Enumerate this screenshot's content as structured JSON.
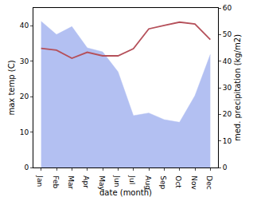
{
  "chart_data": {
    "type": "line",
    "x_label": "date (month)",
    "y_label": "max temp (C)",
    "y2_label": "med. precipitation (kg/m2)",
    "categories": [
      "Jan",
      "Feb",
      "Mar",
      "Apr",
      "May",
      "Jun",
      "Jul",
      "Aug",
      "Sep",
      "Oct",
      "Nov",
      "Dec"
    ],
    "series": [
      {
        "name": "med. precipitation",
        "type": "area",
        "axis": "y2",
        "color": "#b3c0f2",
        "values": [
          55,
          50,
          53,
          45,
          43.5,
          36,
          19.5,
          20.5,
          18,
          17,
          27,
          42.5
        ]
      },
      {
        "name": "max temp",
        "type": "line",
        "color": "#b5505a",
        "values": [
          33.6,
          33.1,
          30.8,
          32.5,
          31.5,
          31.5,
          33.5,
          39.1,
          40.1,
          41,
          40.5,
          36.1
        ]
      }
    ],
    "ylim": [
      0,
      45
    ],
    "yticks": [
      0,
      10,
      20,
      30,
      40
    ],
    "y2lim": [
      0,
      60
    ],
    "y2ticks": [
      0,
      10,
      20,
      30,
      40,
      50,
      60
    ],
    "grid": false
  }
}
